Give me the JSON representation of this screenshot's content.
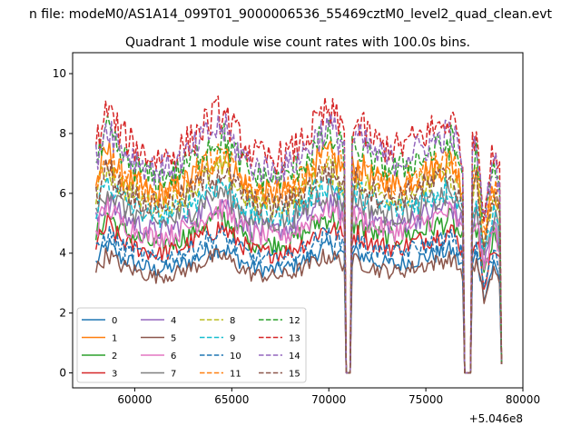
{
  "chart_data": {
    "type": "line",
    "suptitle": "n file: modeM0/AS1A14_099T01_9000006536_55469cztM0_level2_quad_clean.evt",
    "title": "Quadrant 1 module wise count rates with 100.0s bins.",
    "xlabel": "",
    "ylabel": "",
    "x_offset_label": "+5.046e8",
    "xlim": [
      56800,
      80000
    ],
    "ylim": [
      -0.5,
      10.7
    ],
    "x_ticks": [
      60000,
      65000,
      70000,
      75000,
      80000
    ],
    "x_tick_labels": [
      "60000",
      "65000",
      "70000",
      "75000",
      "80000"
    ],
    "y_ticks": [
      0,
      2,
      4,
      6,
      8,
      10
    ],
    "y_tick_labels": [
      "0",
      "2",
      "4",
      "6",
      "8",
      "10"
    ],
    "grid": false,
    "legend_position": "lower-left",
    "legend_columns": 4,
    "gaps": [
      [
        70850,
        71150
      ],
      [
        77000,
        77300
      ]
    ],
    "shape_x": [
      58000,
      58600,
      59200,
      60000,
      61000,
      62000,
      63000,
      63800,
      64500,
      65200,
      66000,
      67000,
      68000,
      68800,
      69500,
      70000,
      70600,
      70850,
      71150,
      71500,
      72500,
      73500,
      74500,
      75500,
      76300,
      76800,
      77000,
      77300,
      77600,
      78000,
      78500,
      78900
    ],
    "shape_f": [
      0.85,
      1.0,
      0.9,
      0.85,
      0.8,
      0.82,
      0.88,
      0.95,
      0.98,
      0.9,
      0.82,
      0.8,
      0.82,
      0.88,
      0.95,
      0.98,
      0.93,
      0.9,
      0.92,
      0.93,
      0.86,
      0.84,
      0.88,
      0.92,
      0.96,
      0.85,
      0.8,
      0.8,
      0.92,
      0.6,
      0.85,
      0.7
    ],
    "series": [
      {
        "name": "0",
        "color": "#1f77b4",
        "style": "solid",
        "level": 4.3
      },
      {
        "name": "1",
        "color": "#ff7f0e",
        "style": "solid",
        "level": 7.4
      },
      {
        "name": "2",
        "color": "#2ca02c",
        "style": "solid",
        "level": 5.3
      },
      {
        "name": "3",
        "color": "#d62728",
        "style": "solid",
        "level": 4.9
      },
      {
        "name": "4",
        "color": "#9467bd",
        "style": "solid",
        "level": 5.8
      },
      {
        "name": "5",
        "color": "#8c564b",
        "style": "solid",
        "level": 3.9
      },
      {
        "name": "6",
        "color": "#e377c2",
        "style": "solid",
        "level": 5.5
      },
      {
        "name": "7",
        "color": "#7f7f7f",
        "style": "solid",
        "level": 6.1
      },
      {
        "name": "8",
        "color": "#bcbd22",
        "style": "dashed",
        "level": 6.8
      },
      {
        "name": "9",
        "color": "#17becf",
        "style": "dashed",
        "level": 6.3
      },
      {
        "name": "10",
        "color": "#1f77b4",
        "style": "dashed",
        "level": 4.5
      },
      {
        "name": "11",
        "color": "#ff7f0e",
        "style": "dashed",
        "level": 7.2
      },
      {
        "name": "12",
        "color": "#2ca02c",
        "style": "dashed",
        "level": 7.8
      },
      {
        "name": "13",
        "color": "#d62728",
        "style": "dashed",
        "level": 8.6
      },
      {
        "name": "14",
        "color": "#9467bd",
        "style": "dashed",
        "level": 8.1
      },
      {
        "name": "15",
        "color": "#8c564b",
        "style": "dashed",
        "level": 6.6
      }
    ]
  }
}
